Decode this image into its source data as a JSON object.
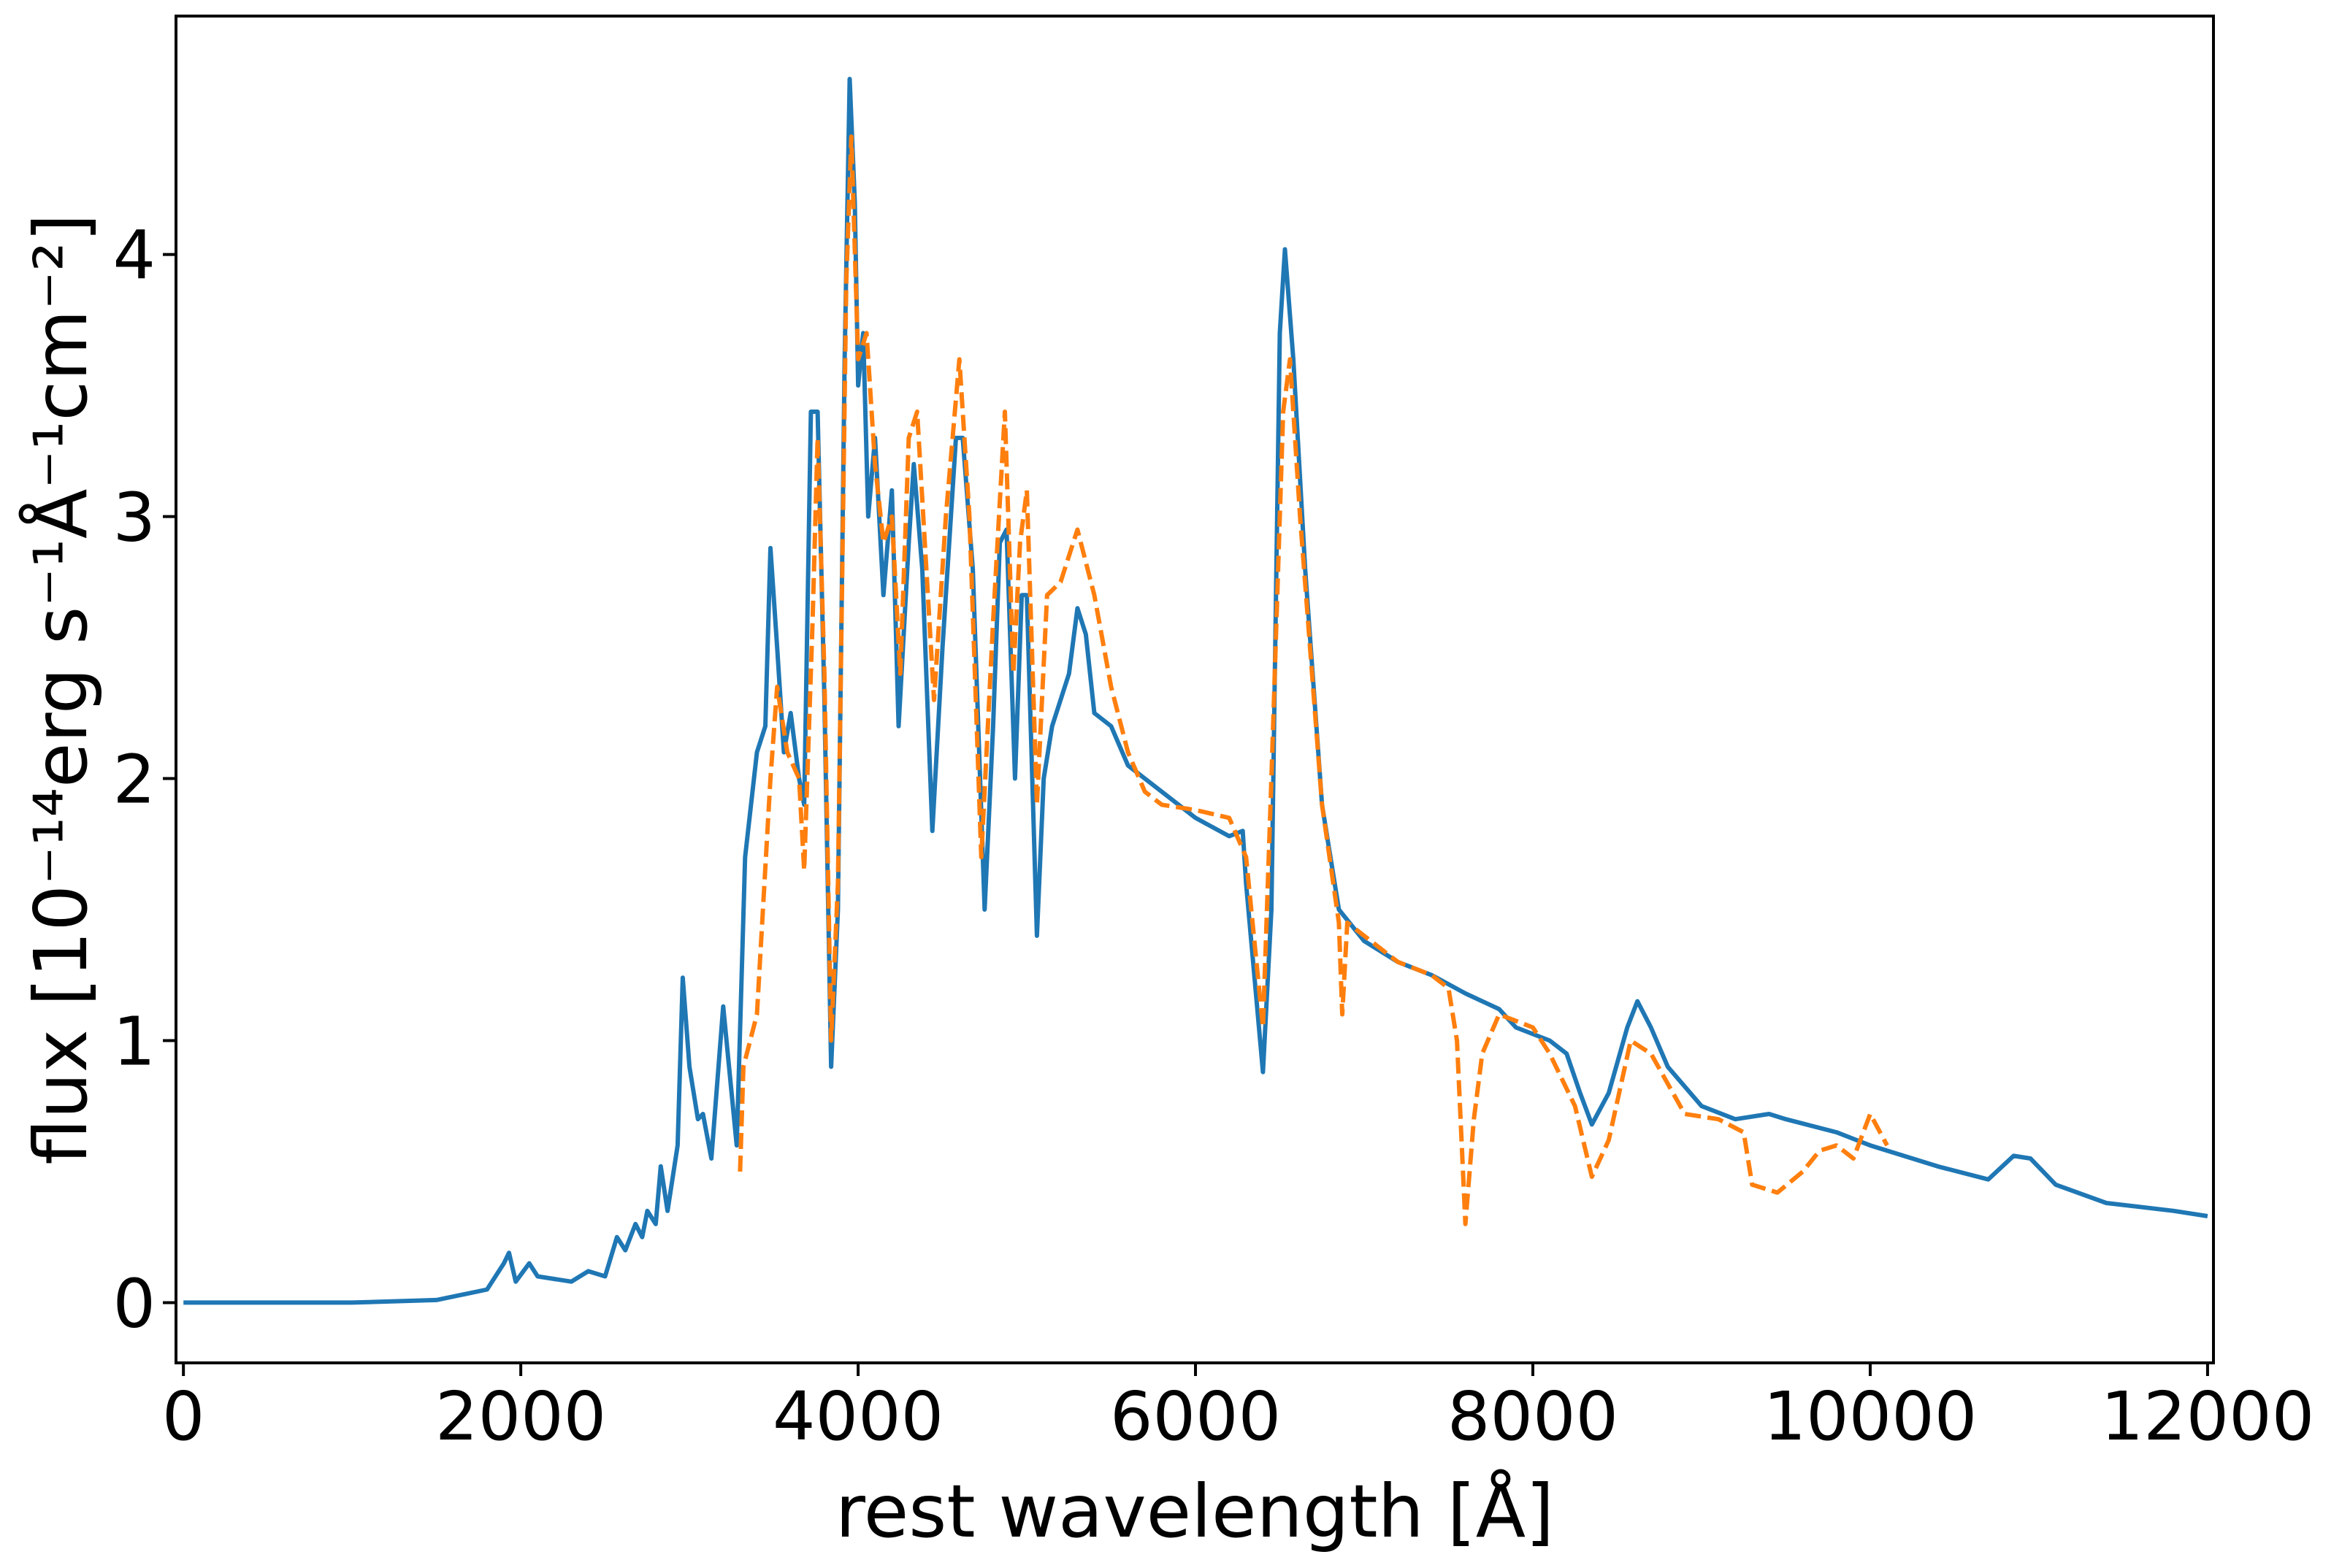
{
  "chart_data": {
    "type": "line",
    "xlabel": "rest wavelength [Å]",
    "ylabel": "flux [10⁻¹⁴erg s⁻¹Å⁻¹cm⁻²]",
    "xlim": [
      -44,
      12035
    ],
    "ylim": [
      -0.23,
      4.91
    ],
    "xticks": [
      0,
      2000,
      4000,
      6000,
      8000,
      10000,
      12000
    ],
    "yticks": [
      0,
      1,
      2,
      3,
      4
    ],
    "grid": false,
    "series": [
      {
        "color": "#1f77b4",
        "linestyle": "solid",
        "x": [
          0,
          1000,
          1500,
          1800,
          1900,
          1930,
          1970,
          2050,
          2100,
          2300,
          2400,
          2500,
          2570,
          2620,
          2680,
          2720,
          2750,
          2800,
          2830,
          2870,
          2930,
          2960,
          3000,
          3050,
          3080,
          3130,
          3200,
          3250,
          3280,
          3330,
          3400,
          3450,
          3480,
          3520,
          3560,
          3600,
          3650,
          3680,
          3720,
          3760,
          3800,
          3840,
          3880,
          3920,
          3950,
          3980,
          4000,
          4030,
          4060,
          4100,
          4150,
          4200,
          4240,
          4300,
          4330,
          4380,
          4440,
          4500,
          4580,
          4620,
          4680,
          4750,
          4800,
          4840,
          4880,
          4930,
          4970,
          5000,
          5060,
          5100,
          5150,
          5250,
          5300,
          5350,
          5400,
          5500,
          5600,
          5800,
          6000,
          6200,
          6280,
          6300,
          6400,
          6450,
          6500,
          6530,
          6580,
          6650,
          6750,
          6850,
          7000,
          7200,
          7400,
          7600,
          7800,
          7900,
          8100,
          8200,
          8280,
          8350,
          8450,
          8560,
          8620,
          8700,
          8800,
          9000,
          9200,
          9400,
          9500,
          9800,
          10000,
          10400,
          10700,
          10850,
          10950,
          11100,
          11400,
          11800,
          12000
        ],
        "values": [
          0,
          0,
          0.01,
          0.05,
          0.15,
          0.19,
          0.08,
          0.15,
          0.1,
          0.08,
          0.12,
          0.1,
          0.25,
          0.2,
          0.3,
          0.25,
          0.35,
          0.3,
          0.52,
          0.35,
          0.6,
          1.24,
          0.9,
          0.7,
          0.72,
          0.55,
          1.13,
          0.8,
          0.6,
          1.7,
          2.1,
          2.2,
          2.88,
          2.5,
          2.1,
          2.25,
          2.0,
          1.9,
          3.4,
          3.4,
          2.3,
          0.9,
          1.5,
          3.6,
          4.67,
          4.2,
          3.5,
          3.7,
          3.0,
          3.3,
          2.7,
          3.1,
          2.2,
          2.9,
          3.2,
          2.8,
          1.8,
          2.5,
          3.3,
          3.3,
          2.8,
          1.5,
          2.2,
          2.9,
          2.95,
          2.0,
          2.7,
          2.7,
          1.4,
          2.0,
          2.2,
          2.4,
          2.65,
          2.55,
          2.25,
          2.2,
          2.05,
          1.95,
          1.85,
          1.78,
          1.8,
          1.6,
          0.88,
          1.5,
          3.7,
          4.02,
          3.6,
          2.8,
          1.9,
          1.5,
          1.38,
          1.3,
          1.25,
          1.18,
          1.12,
          1.05,
          1.0,
          0.95,
          0.8,
          0.68,
          0.8,
          1.05,
          1.15,
          1.05,
          0.9,
          0.75,
          0.7,
          0.72,
          0.7,
          0.65,
          0.6,
          0.52,
          0.47,
          0.56,
          0.55,
          0.45,
          0.38,
          0.35,
          0.33
        ]
      },
      {
        "color": "#ff7f0e",
        "linestyle": "dashed",
        "x": [
          3300,
          3320,
          3400,
          3480,
          3520,
          3580,
          3650,
          3680,
          3730,
          3760,
          3800,
          3840,
          3880,
          3930,
          3960,
          4000,
          4050,
          4100,
          4150,
          4200,
          4250,
          4300,
          4350,
          4450,
          4520,
          4600,
          4660,
          4730,
          4800,
          4870,
          4920,
          4960,
          5000,
          5060,
          5120,
          5200,
          5300,
          5400,
          5500,
          5600,
          5700,
          5800,
          6000,
          6200,
          6300,
          6400,
          6450,
          6520,
          6560,
          6620,
          6750,
          6850,
          6870,
          6900,
          7200,
          7400,
          7500,
          7550,
          7600,
          7650,
          7700,
          7800,
          8000,
          8100,
          8250,
          8350,
          8450,
          8580,
          8700,
          8900,
          9100,
          9250,
          9300,
          9450,
          9600,
          9700,
          9800,
          9900,
          10000,
          10100
        ],
        "values": [
          0.5,
          0.9,
          1.1,
          2.0,
          2.35,
          2.1,
          2.0,
          1.65,
          2.6,
          3.3,
          2.4,
          1.0,
          1.6,
          3.9,
          4.45,
          3.6,
          3.7,
          3.2,
          2.9,
          3.0,
          2.4,
          3.3,
          3.4,
          2.3,
          3.0,
          3.6,
          3.0,
          1.7,
          2.6,
          3.4,
          2.4,
          2.9,
          3.1,
          1.9,
          2.7,
          2.75,
          2.95,
          2.7,
          2.35,
          2.1,
          1.95,
          1.9,
          1.88,
          1.85,
          1.7,
          1.05,
          2.0,
          3.4,
          3.6,
          3.0,
          1.9,
          1.45,
          1.1,
          1.45,
          1.3,
          1.25,
          1.2,
          1.0,
          0.3,
          0.7,
          0.95,
          1.1,
          1.05,
          0.95,
          0.75,
          0.48,
          0.62,
          1.0,
          0.95,
          0.72,
          0.7,
          0.65,
          0.45,
          0.42,
          0.5,
          0.58,
          0.6,
          0.55,
          0.72,
          0.6
        ]
      }
    ]
  }
}
